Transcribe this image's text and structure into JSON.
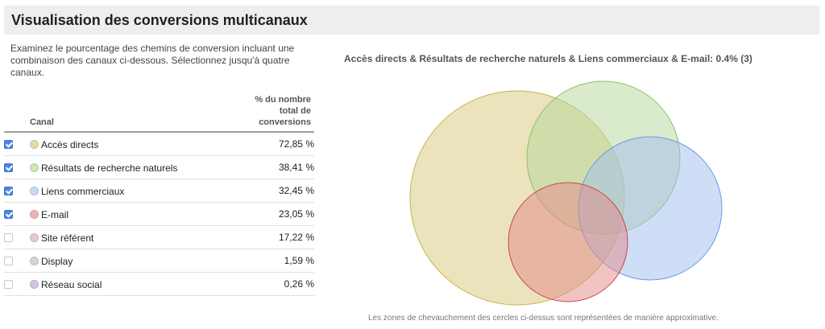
{
  "header": {
    "title": "Visualisation des conversions multicanaux"
  },
  "description": "Examinez le pourcentage des chemins de conversion incluant une combinaison des canaux ci-dessous. Sélectionnez jusqu'à quatre canaux.",
  "table": {
    "col_channel": "Canal",
    "col_pct_line1": "% du nombre",
    "col_pct_line2": "total de",
    "col_pct_line3": "conversions",
    "rows": [
      {
        "name": "Accès directs",
        "pct": "72,85 %",
        "checked": true,
        "color": "#e8dca6"
      },
      {
        "name": "Résultats de recherche naturels",
        "pct": "38,41 %",
        "checked": true,
        "color": "#cfe6b8"
      },
      {
        "name": "Liens commerciaux",
        "pct": "32,45 %",
        "checked": true,
        "color": "#c9d9f7"
      },
      {
        "name": "E-mail",
        "pct": "23,05 %",
        "checked": true,
        "color": "#efb3b3"
      },
      {
        "name": "Site référent",
        "pct": "17,22 %",
        "checked": false,
        "color": "#e7c9cf"
      },
      {
        "name": "Display",
        "pct": "1,59 %",
        "checked": false,
        "color": "#d6d6d6"
      },
      {
        "name": "Réseau social",
        "pct": "0,26 %",
        "checked": false,
        "color": "#d6c3ec"
      }
    ]
  },
  "venn": {
    "title": "Accès directs & Résultats de recherche naturels & Liens commerciaux & E-mail: 0.4% (3)",
    "footnote": "Les zones de chevauchement des cercles ci-dessus sont représentées de manière approximative.",
    "circles": [
      {
        "channel": "Accès directs",
        "fill": "#d8c77a",
        "stroke": "#c9b34a"
      },
      {
        "channel": "Résultats de recherche naturels",
        "fill": "#b6d89a",
        "stroke": "#8fbf5f"
      },
      {
        "channel": "Liens commerciaux",
        "fill": "#9fbdf0",
        "stroke": "#6e98e0"
      },
      {
        "channel": "E-mail",
        "fill": "#e38a8a",
        "stroke": "#cc4444"
      }
    ]
  }
}
